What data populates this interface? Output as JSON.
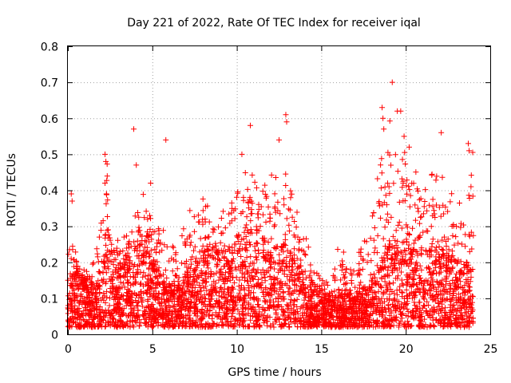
{
  "chart_data": {
    "type": "scatter",
    "title": "Day 221 of 2022, Rate Of TEC Index for receiver iqal",
    "xlabel": "GPS time / hours",
    "ylabel": "ROTI / TECUs",
    "xlim": [
      0,
      25
    ],
    "ylim": [
      0,
      0.8
    ],
    "x_ticks": [
      "0",
      "5",
      "10",
      "15",
      "20",
      "25"
    ],
    "y_ticks": [
      "0",
      "0.1",
      "0.2",
      "0.3",
      "0.4",
      "0.5",
      "0.6",
      "0.7",
      "0.8"
    ],
    "grid": true,
    "marker": "+",
    "series_color": "#ff0000",
    "envelope": {
      "hours": [
        0,
        0.5,
        1,
        1.5,
        2,
        2.3,
        2.5,
        3,
        3.5,
        4,
        4.5,
        5,
        5.5,
        6,
        6.5,
        7,
        7.5,
        8,
        8.5,
        9,
        9.5,
        10,
        10.5,
        11,
        11.5,
        12,
        12.5,
        13,
        13.5,
        14,
        14.5,
        15,
        15.5,
        16,
        16.5,
        17,
        17.5,
        18,
        18.5,
        19,
        19.5,
        20,
        20.5,
        21,
        21.5,
        22,
        22.5,
        23,
        23.5,
        24
      ],
      "typical_roti": [
        0.08,
        0.1,
        0.09,
        0.07,
        0.12,
        0.18,
        0.14,
        0.1,
        0.12,
        0.15,
        0.16,
        0.12,
        0.1,
        0.08,
        0.07,
        0.1,
        0.12,
        0.14,
        0.15,
        0.14,
        0.14,
        0.16,
        0.18,
        0.17,
        0.16,
        0.15,
        0.14,
        0.15,
        0.12,
        0.1,
        0.08,
        0.07,
        0.06,
        0.06,
        0.06,
        0.06,
        0.07,
        0.09,
        0.12,
        0.14,
        0.15,
        0.15,
        0.15,
        0.14,
        0.14,
        0.14,
        0.13,
        0.12,
        0.11,
        0.1
      ],
      "peak_roti": [
        0.28,
        0.24,
        0.18,
        0.2,
        0.32,
        0.5,
        0.3,
        0.26,
        0.3,
        0.35,
        0.42,
        0.32,
        0.3,
        0.28,
        0.22,
        0.35,
        0.36,
        0.38,
        0.36,
        0.36,
        0.34,
        0.5,
        0.48,
        0.45,
        0.42,
        0.45,
        0.48,
        0.45,
        0.35,
        0.3,
        0.22,
        0.18,
        0.14,
        0.27,
        0.21,
        0.21,
        0.25,
        0.38,
        0.55,
        0.6,
        0.55,
        0.5,
        0.5,
        0.45,
        0.48,
        0.45,
        0.42,
        0.38,
        0.35,
        0.53
      ]
    },
    "notable_points": [
      {
        "x": 0.2,
        "y": 0.39
      },
      {
        "x": 0.25,
        "y": 0.37
      },
      {
        "x": 2.2,
        "y": 0.5
      },
      {
        "x": 2.25,
        "y": 0.48
      },
      {
        "x": 2.2,
        "y": 0.42
      },
      {
        "x": 3.9,
        "y": 0.57
      },
      {
        "x": 4.05,
        "y": 0.47
      },
      {
        "x": 4.9,
        "y": 0.42
      },
      {
        "x": 5.8,
        "y": 0.54
      },
      {
        "x": 10.3,
        "y": 0.5
      },
      {
        "x": 10.8,
        "y": 0.58
      },
      {
        "x": 12.5,
        "y": 0.54
      },
      {
        "x": 12.9,
        "y": 0.61
      },
      {
        "x": 12.95,
        "y": 0.59
      },
      {
        "x": 18.6,
        "y": 0.63
      },
      {
        "x": 18.65,
        "y": 0.6
      },
      {
        "x": 18.7,
        "y": 0.57
      },
      {
        "x": 19.2,
        "y": 0.7
      },
      {
        "x": 19.5,
        "y": 0.62
      },
      {
        "x": 19.7,
        "y": 0.62
      },
      {
        "x": 19.9,
        "y": 0.55
      },
      {
        "x": 20.2,
        "y": 0.52
      },
      {
        "x": 22.1,
        "y": 0.56
      },
      {
        "x": 23.7,
        "y": 0.53
      },
      {
        "x": 23.75,
        "y": 0.51
      }
    ]
  }
}
